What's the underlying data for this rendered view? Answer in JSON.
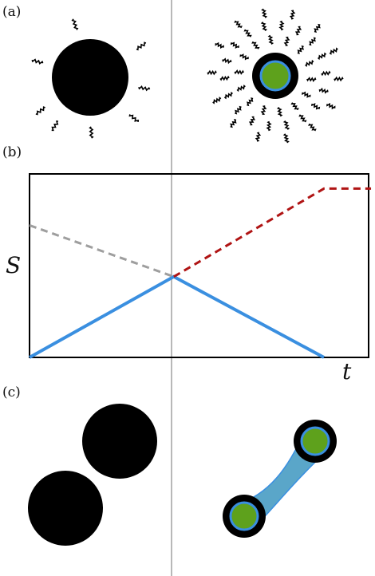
{
  "panels": {
    "a": {
      "label": "(a)"
    },
    "b": {
      "label": "(b)"
    },
    "c": {
      "label": "(c)"
    }
  },
  "plot": {
    "ylabel": "S",
    "xlabel": "t"
  },
  "chart_data": {
    "type": "line",
    "title": "",
    "xlabel": "t",
    "ylabel": "S",
    "grid": false,
    "series": [
      {
        "style": "solid",
        "color": "#3a8fe0",
        "points": [
          [
            0,
            0
          ],
          [
            0.49,
            0.44
          ],
          [
            1.0,
            0
          ]
        ]
      },
      {
        "style": "dashed",
        "color": "#9e9e9e",
        "points": [
          [
            0,
            0.72
          ],
          [
            0.49,
            0.44
          ]
        ]
      },
      {
        "style": "dashed",
        "color": "#b01414",
        "points": [
          [
            0.49,
            0.44
          ],
          [
            1.0,
            0.92
          ],
          [
            1.16,
            0.92
          ]
        ]
      }
    ]
  },
  "colors": {
    "blob": "#000000",
    "core": "#5ea11c",
    "ring": "#3a8fe0",
    "bridge": "#5aa6c9",
    "guide": "#b8b8b8"
  }
}
